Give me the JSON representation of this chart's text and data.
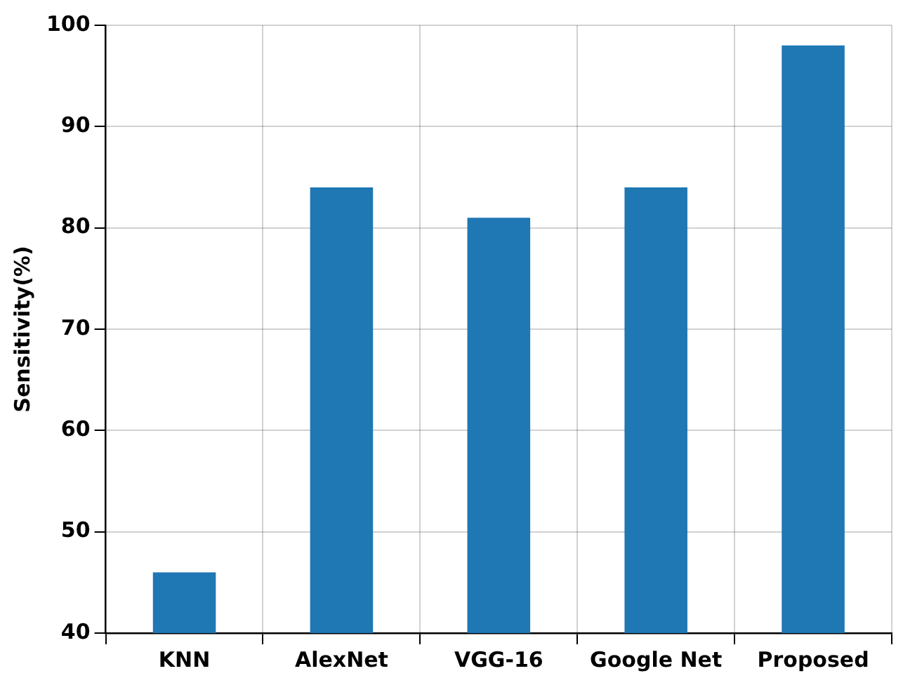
{
  "chart_data": {
    "type": "bar",
    "ylabel": "Sensitivity(%)",
    "categories": [
      "KNN",
      "AlexNet",
      "VGG-16",
      "Google Net",
      "Proposed"
    ],
    "values": [
      46,
      84,
      81,
      84,
      98
    ],
    "color": "#1f77b4",
    "ylim": [
      40,
      100
    ],
    "yticks": [
      40,
      50,
      60,
      70,
      80,
      90,
      100
    ],
    "grid": true,
    "legend": false
  }
}
